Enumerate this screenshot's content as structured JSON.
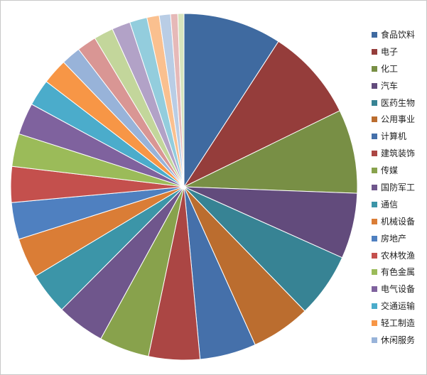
{
  "chart_data": {
    "type": "pie",
    "title": "",
    "legend": "right",
    "start": "top",
    "direction": "clockwise",
    "series": [
      {
        "name": "食品饮料",
        "value": 9.6,
        "color": "#3f6aa0",
        "show_in_legend": true
      },
      {
        "name": "电子",
        "value": 9.0,
        "color": "#953d3b",
        "show_in_legend": true
      },
      {
        "name": "化工",
        "value": 8.2,
        "color": "#788f45",
        "show_in_legend": true
      },
      {
        "name": "汽车",
        "value": 6.4,
        "color": "#624b7c",
        "show_in_legend": true
      },
      {
        "name": "医药生物",
        "value": 6.3,
        "color": "#378394",
        "show_in_legend": true
      },
      {
        "name": "公用事业",
        "value": 5.8,
        "color": "#bb6d2f",
        "show_in_legend": true
      },
      {
        "name": "计算机",
        "value": 5.5,
        "color": "#4570aa",
        "show_in_legend": true
      },
      {
        "name": "建筑装饰",
        "value": 5.0,
        "color": "#ab4644",
        "show_in_legend": true
      },
      {
        "name": "传媒",
        "value": 4.9,
        "color": "#88a24c",
        "show_in_legend": true
      },
      {
        "name": "国防军工",
        "value": 4.7,
        "color": "#6f568c",
        "show_in_legend": true
      },
      {
        "name": "通信",
        "value": 4.1,
        "color": "#3c95a8",
        "show_in_legend": true
      },
      {
        "name": "机械设备",
        "value": 3.9,
        "color": "#da7d36",
        "show_in_legend": true
      },
      {
        "name": "房地产",
        "value": 3.6,
        "color": "#4f80c0",
        "show_in_legend": true
      },
      {
        "name": "农林牧渔",
        "value": 3.5,
        "color": "#c4504d",
        "show_in_legend": true
      },
      {
        "name": "有色金属",
        "value": 3.2,
        "color": "#9bbb59",
        "show_in_legend": true
      },
      {
        "name": "电气设备",
        "value": 3.1,
        "color": "#7f629e",
        "show_in_legend": true
      },
      {
        "name": "交通运输",
        "value": 2.6,
        "color": "#4baccb",
        "show_in_legend": true
      },
      {
        "name": "轻工制造",
        "value": 2.5,
        "color": "#f79646",
        "show_in_legend": true
      },
      {
        "name": "休闲服务",
        "value": 1.9,
        "color": "#98b3d9",
        "show_in_legend": true
      },
      {
        "name": "",
        "value": 1.9,
        "color": "#d99694",
        "show_in_legend": false
      },
      {
        "name": "",
        "value": 1.9,
        "color": "#c3d69b",
        "show_in_legend": false
      },
      {
        "name": "",
        "value": 1.8,
        "color": "#b2a2c7",
        "show_in_legend": false
      },
      {
        "name": "",
        "value": 1.7,
        "color": "#93cddd",
        "show_in_legend": false
      },
      {
        "name": "",
        "value": 1.2,
        "color": "#fac08f",
        "show_in_legend": false
      },
      {
        "name": "",
        "value": 1.1,
        "color": "#b9cde5",
        "show_in_legend": false
      },
      {
        "name": "",
        "value": 0.7,
        "color": "#e6b9b8",
        "show_in_legend": false
      },
      {
        "name": "",
        "value": 0.6,
        "color": "#d7e4bd",
        "show_in_legend": false
      }
    ]
  }
}
